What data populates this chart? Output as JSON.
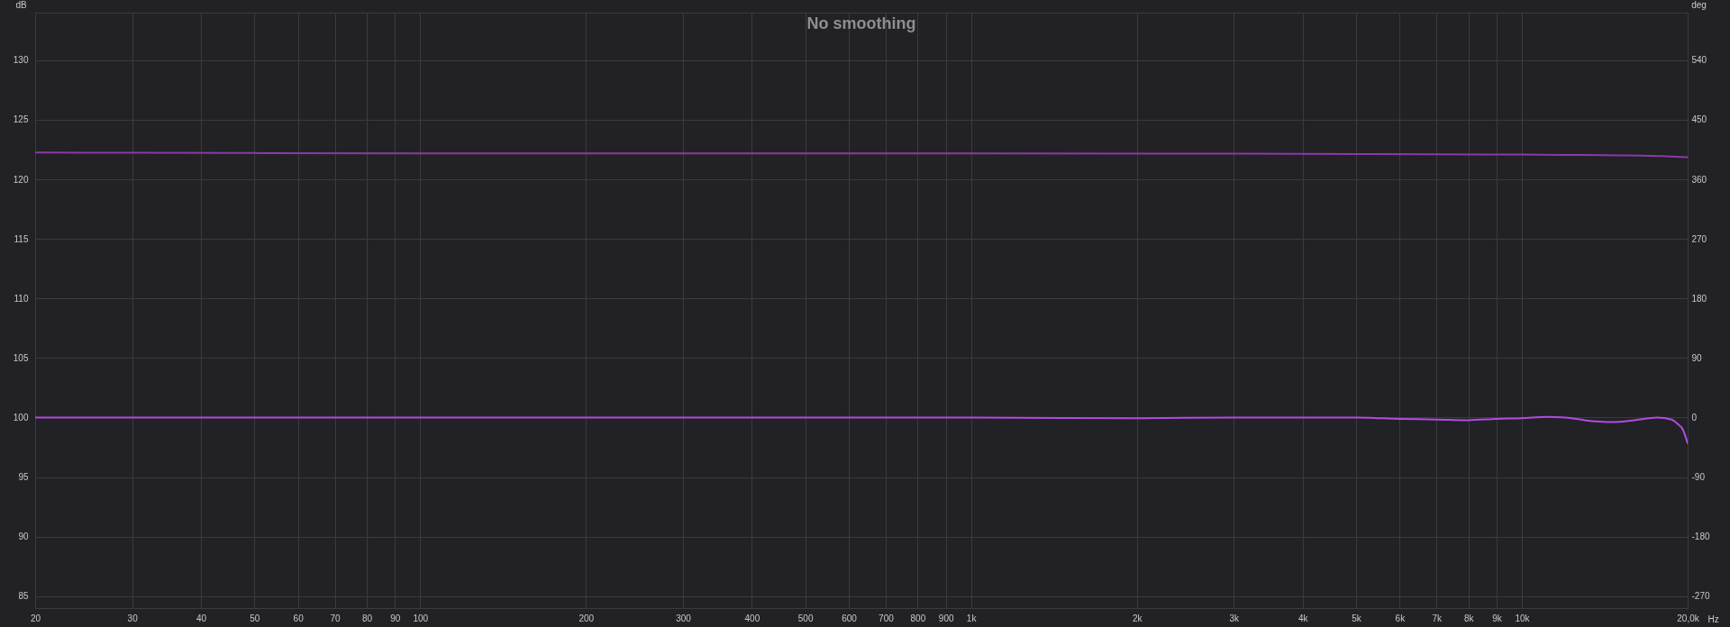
{
  "chart_data": {
    "type": "line",
    "title": "No smoothing",
    "xlabel": "Hz",
    "ylabel": "dB",
    "y2label": "deg",
    "log": "x",
    "grid": true,
    "xlim": [
      20,
      20000
    ],
    "xticks": [
      20,
      30,
      40,
      50,
      60,
      70,
      80,
      90,
      100,
      200,
      300,
      400,
      500,
      600,
      700,
      800,
      900,
      {
        "value": 1000,
        "label": "1k"
      },
      {
        "value": 2000,
        "label": "2k"
      },
      {
        "value": 3000,
        "label": "3k"
      },
      {
        "value": 4000,
        "label": "4k"
      },
      {
        "value": 5000,
        "label": "5k"
      },
      {
        "value": 6000,
        "label": "6k"
      },
      {
        "value": 7000,
        "label": "7k"
      },
      {
        "value": 8000,
        "label": "8k"
      },
      {
        "value": 9000,
        "label": "9k"
      },
      {
        "value": 10000,
        "label": "10k"
      },
      {
        "value": 20000,
        "label": "20,0k"
      }
    ],
    "ylim": [
      84,
      134
    ],
    "yticks": [
      85,
      90,
      95,
      100,
      105,
      110,
      115,
      120,
      125,
      130
    ],
    "y2lim": [
      -288,
      612
    ],
    "y2ticks": [
      -270,
      -180,
      -90,
      0,
      90,
      180,
      270,
      360,
      450,
      540
    ],
    "series": [
      {
        "color": "#8a3aa6",
        "x": [
          20,
          30,
          50,
          100,
          200,
          500,
          1000,
          2000,
          3000,
          5000,
          7000,
          10000,
          13000,
          15000,
          17000,
          18000,
          19000,
          20000
        ],
        "values": [
          122.25,
          122.23,
          122.21,
          122.19,
          122.18,
          122.18,
          122.18,
          122.17,
          122.16,
          122.13,
          122.1,
          122.08,
          122.04,
          122.01,
          121.98,
          121.95,
          121.9,
          121.85
        ]
      },
      {
        "color": "#b24be4",
        "axis": "y2",
        "x": [
          20,
          50,
          100,
          200,
          500,
          1000,
          2000,
          3000,
          4000,
          5000,
          6000,
          7000,
          8000,
          9000,
          10000,
          11100,
          12000,
          13000,
          14600,
          16000,
          17000,
          17600,
          18700,
          19200,
          19600,
          20000
        ],
        "values": [
          0,
          0,
          0,
          0,
          0,
          0,
          -1,
          0,
          0,
          0,
          -2,
          -3,
          -4,
          -2,
          -1,
          1,
          0,
          -4,
          -7,
          -4,
          -1,
          0,
          -3,
          -10,
          -18,
          -39
        ]
      }
    ]
  }
}
